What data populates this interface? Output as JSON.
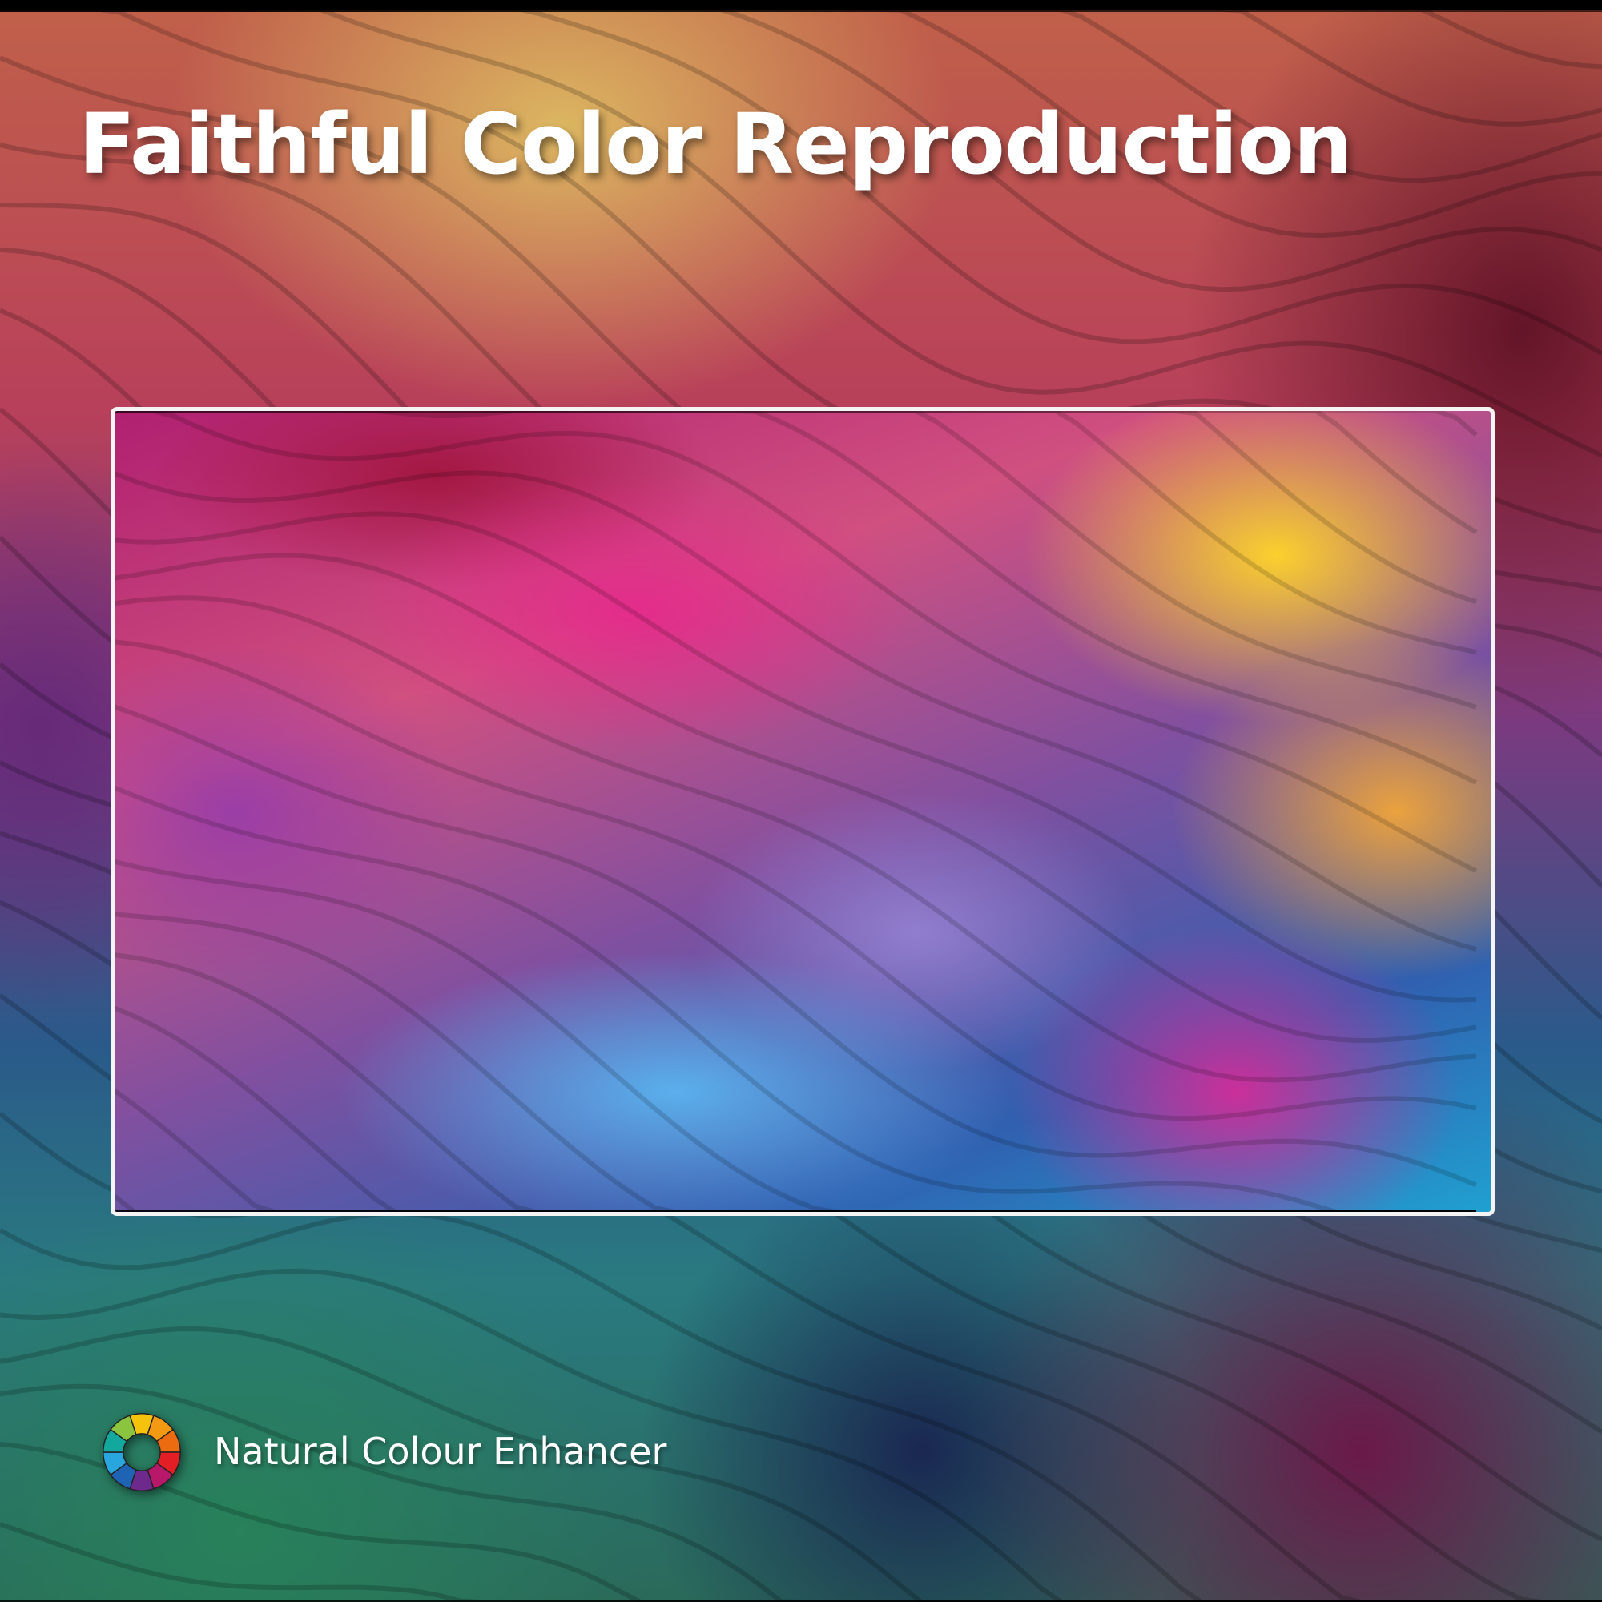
{
  "title": "Faithful Color Reproduction",
  "brand": {
    "name": "Natural Colour Enhancer",
    "logo_icon": "color-wheel-icon",
    "wheel_colors": [
      "#f5c20c",
      "#f39a12",
      "#ec6a10",
      "#e31e24",
      "#b8186a",
      "#6d2a8c",
      "#1f64b4",
      "#2aa6df",
      "#13a89e",
      "#8bc43f"
    ]
  },
  "colors": {
    "frame_border": "#f4f4f4",
    "text": "#ffffff"
  }
}
